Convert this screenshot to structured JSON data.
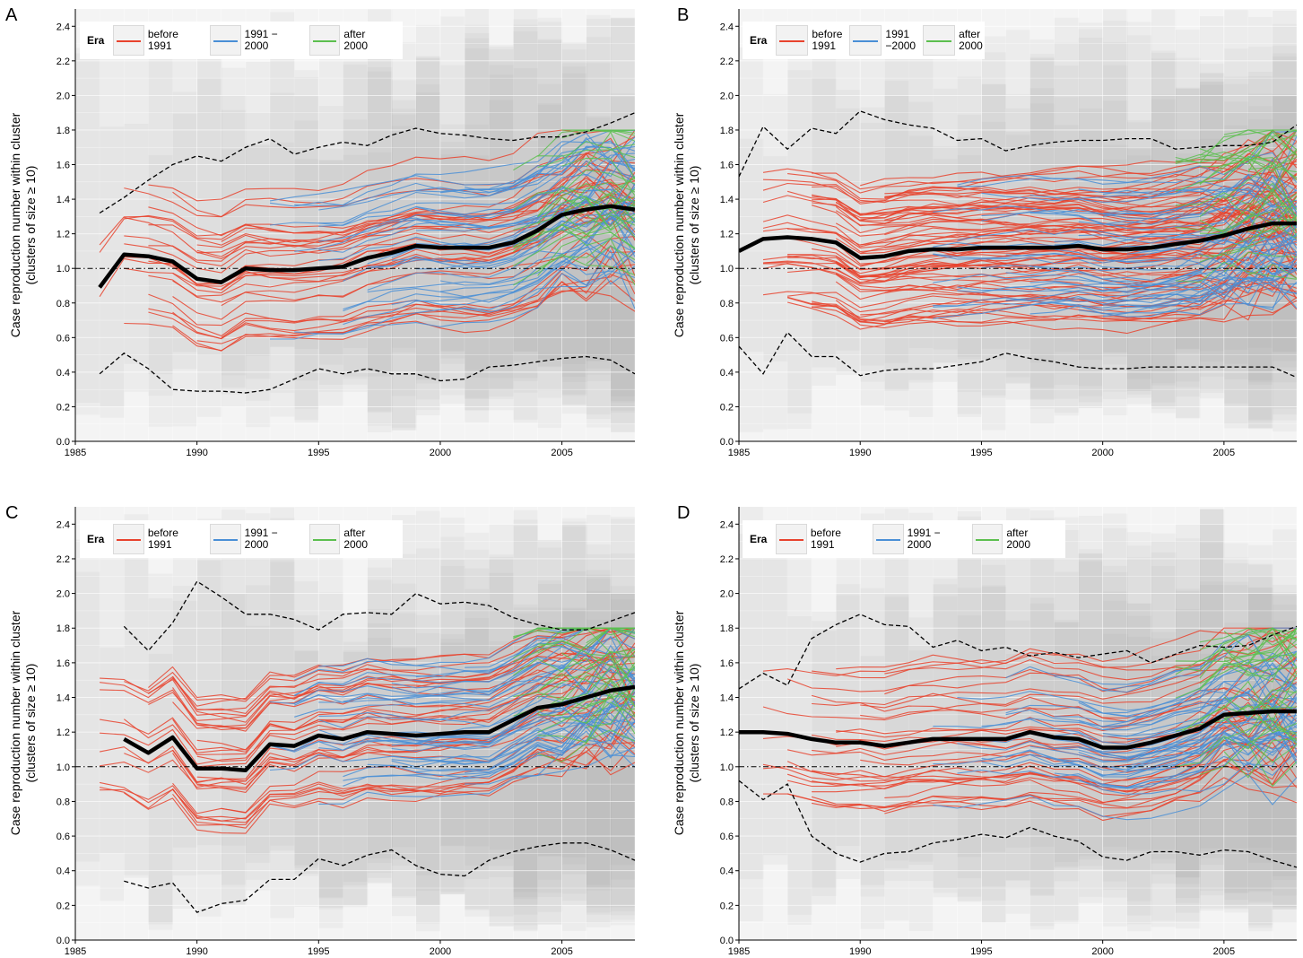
{
  "panels": [
    {
      "letter": "A",
      "ylabel_line1": "Case reproduction number within cluster",
      "ylabel_line2": "(clusters of size ≥ 10)",
      "legend": {
        "title": "Era",
        "entries": [
          "before 1991",
          "1991 − 2000",
          "after 2000"
        ]
      },
      "legend_wrapped": false
    },
    {
      "letter": "B",
      "ylabel_line1": "Case reproduction number within cluster",
      "ylabel_line2": "(clusters of size ≥ 10)",
      "legend": {
        "title": "Era",
        "entries": [
          "before\n1991",
          "1991\n−2000",
          "after\n2000"
        ]
      },
      "legend_wrapped": true
    },
    {
      "letter": "C",
      "ylabel_line1": "Case reproduction number within cluster",
      "ylabel_line2": "(clusters of size ≥ 10)",
      "legend": {
        "title": "Era",
        "entries": [
          "before 1991",
          "1991 − 2000",
          "after 2000"
        ]
      },
      "legend_wrapped": false
    },
    {
      "letter": "D",
      "ylabel_line1": "Case reproduction number within cluster",
      "ylabel_line2": "(clusters of size ≥ 10)",
      "legend": {
        "title": "Era",
        "entries": [
          "before 1991",
          "1991 − 2000",
          "after 2000"
        ]
      },
      "legend_wrapped": false
    }
  ],
  "colors": {
    "before_1991": "#e8432e",
    "1991_2000": "#4a8fd6",
    "after_2000": "#5cbf4f",
    "mean_line": "#000000",
    "quantile_line": "#000000",
    "reference_line": "#000000",
    "background_band": "#8a8a8a"
  },
  "chart_data": [
    {
      "panel": "A",
      "type": "line",
      "xlim": [
        1985,
        2008
      ],
      "ylim": [
        0,
        2.5
      ],
      "x_ticks": [
        1985,
        1990,
        1995,
        2000,
        2005
      ],
      "y_ticks": [
        0.0,
        0.2,
        0.4,
        0.6,
        0.8,
        1.0,
        1.2,
        1.4,
        1.6,
        1.8,
        2.0,
        2.2,
        2.4
      ],
      "reference_y": 1.0,
      "grid": true,
      "legend_position": "top-left",
      "series": [
        {
          "role": "mean",
          "x": [
            1986,
            1987,
            1988,
            1989,
            1990,
            1991,
            1992,
            1993,
            1994,
            1995,
            1996,
            1997,
            1998,
            1999,
            2000,
            2001,
            2002,
            2003,
            2004,
            2005,
            2006,
            2007,
            2008
          ],
          "y": [
            0.89,
            1.08,
            1.07,
            1.04,
            0.94,
            0.92,
            1.0,
            0.99,
            0.99,
            1.0,
            1.01,
            1.06,
            1.09,
            1.13,
            1.12,
            1.12,
            1.12,
            1.15,
            1.22,
            1.31,
            1.34,
            1.36,
            1.34
          ]
        },
        {
          "role": "upper",
          "x": [
            1986,
            1987,
            1988,
            1989,
            1990,
            1991,
            1992,
            1993,
            1994,
            1995,
            1996,
            1997,
            1998,
            1999,
            2000,
            2001,
            2002,
            2003,
            2004,
            2005,
            2006,
            2007,
            2008
          ],
          "y": [
            1.32,
            1.41,
            1.51,
            1.6,
            1.65,
            1.62,
            1.7,
            1.75,
            1.66,
            1.7,
            1.73,
            1.71,
            1.77,
            1.81,
            1.78,
            1.77,
            1.75,
            1.74,
            1.76,
            1.76,
            1.79,
            1.84,
            1.9
          ]
        },
        {
          "role": "lower",
          "x": [
            1986,
            1987,
            1988,
            1989,
            1990,
            1991,
            1992,
            1993,
            1994,
            1995,
            1996,
            1997,
            1998,
            1999,
            2000,
            2001,
            2002,
            2003,
            2004,
            2005,
            2006,
            2007,
            2008
          ],
          "y": [
            0.39,
            0.51,
            0.42,
            0.3,
            0.29,
            0.29,
            0.28,
            0.3,
            0.36,
            0.42,
            0.39,
            0.42,
            0.39,
            0.39,
            0.35,
            0.36,
            0.43,
            0.44,
            0.46,
            0.48,
            0.49,
            0.47,
            0.39
          ]
        }
      ]
    },
    {
      "panel": "B",
      "type": "line",
      "xlim": [
        1985,
        2008
      ],
      "ylim": [
        0,
        2.5
      ],
      "x_ticks": [
        1985,
        1990,
        1995,
        2000,
        2005
      ],
      "y_ticks": [
        0.0,
        0.2,
        0.4,
        0.6,
        0.8,
        1.0,
        1.2,
        1.4,
        1.6,
        1.8,
        2.0,
        2.2,
        2.4
      ],
      "reference_y": 1.0,
      "grid": true,
      "legend_position": "top-left",
      "series": [
        {
          "role": "mean",
          "x": [
            1985,
            1986,
            1987,
            1988,
            1989,
            1990,
            1991,
            1992,
            1993,
            1994,
            1995,
            1996,
            1997,
            1998,
            1999,
            2000,
            2001,
            2002,
            2003,
            2004,
            2005,
            2006,
            2007,
            2008
          ],
          "y": [
            1.1,
            1.17,
            1.18,
            1.17,
            1.15,
            1.06,
            1.07,
            1.1,
            1.11,
            1.11,
            1.12,
            1.12,
            1.12,
            1.12,
            1.13,
            1.11,
            1.11,
            1.12,
            1.14,
            1.16,
            1.19,
            1.23,
            1.26,
            1.26
          ]
        },
        {
          "role": "upper",
          "x": [
            1985,
            1986,
            1987,
            1988,
            1989,
            1990,
            1991,
            1992,
            1993,
            1994,
            1995,
            1996,
            1997,
            1998,
            1999,
            2000,
            2001,
            2002,
            2003,
            2004,
            2005,
            2006,
            2007,
            2008
          ],
          "y": [
            1.53,
            1.82,
            1.69,
            1.81,
            1.78,
            1.91,
            1.86,
            1.83,
            1.81,
            1.74,
            1.75,
            1.68,
            1.71,
            1.73,
            1.74,
            1.74,
            1.75,
            1.75,
            1.69,
            1.7,
            1.71,
            1.71,
            1.73,
            1.83
          ]
        },
        {
          "role": "lower",
          "x": [
            1985,
            1986,
            1987,
            1988,
            1989,
            1990,
            1991,
            1992,
            1993,
            1994,
            1995,
            1996,
            1997,
            1998,
            1999,
            2000,
            2001,
            2002,
            2003,
            2004,
            2005,
            2006,
            2007,
            2008
          ],
          "y": [
            0.55,
            0.39,
            0.63,
            0.49,
            0.49,
            0.38,
            0.41,
            0.42,
            0.42,
            0.44,
            0.46,
            0.51,
            0.48,
            0.46,
            0.43,
            0.42,
            0.42,
            0.43,
            0.43,
            0.43,
            0.43,
            0.43,
            0.43,
            0.37
          ]
        }
      ]
    },
    {
      "panel": "C",
      "type": "line",
      "xlim": [
        1985,
        2008
      ],
      "ylim": [
        0,
        2.5
      ],
      "x_ticks": [
        1985,
        1990,
        1995,
        2000,
        2005
      ],
      "y_ticks": [
        0.0,
        0.2,
        0.4,
        0.6,
        0.8,
        1.0,
        1.2,
        1.4,
        1.6,
        1.8,
        2.0,
        2.2,
        2.4
      ],
      "reference_y": 1.0,
      "grid": true,
      "legend_position": "top-left",
      "series": [
        {
          "role": "mean",
          "x": [
            1987,
            1988,
            1989,
            1990,
            1991,
            1992,
            1993,
            1994,
            1995,
            1996,
            1997,
            1998,
            1999,
            2000,
            2001,
            2002,
            2003,
            2004,
            2005,
            2006,
            2007,
            2008
          ],
          "y": [
            1.16,
            1.08,
            1.17,
            0.99,
            0.99,
            0.98,
            1.13,
            1.12,
            1.18,
            1.16,
            1.2,
            1.19,
            1.18,
            1.19,
            1.2,
            1.2,
            1.27,
            1.34,
            1.36,
            1.4,
            1.44,
            1.46
          ]
        },
        {
          "role": "upper",
          "x": [
            1987,
            1988,
            1989,
            1990,
            1991,
            1992,
            1993,
            1994,
            1995,
            1996,
            1997,
            1998,
            1999,
            2000,
            2001,
            2002,
            2003,
            2004,
            2005,
            2006,
            2007,
            2008
          ],
          "y": [
            1.81,
            1.67,
            1.83,
            2.07,
            1.98,
            1.88,
            1.88,
            1.85,
            1.79,
            1.88,
            1.89,
            1.88,
            2.0,
            1.94,
            1.95,
            1.93,
            1.86,
            1.82,
            1.79,
            1.79,
            1.84,
            1.89
          ]
        },
        {
          "role": "lower",
          "x": [
            1987,
            1988,
            1989,
            1990,
            1991,
            1992,
            1993,
            1994,
            1995,
            1996,
            1997,
            1998,
            1999,
            2000,
            2001,
            2002,
            2003,
            2004,
            2005,
            2006,
            2007,
            2008
          ],
          "y": [
            0.34,
            0.3,
            0.33,
            0.16,
            0.21,
            0.23,
            0.35,
            0.35,
            0.47,
            0.43,
            0.49,
            0.52,
            0.43,
            0.38,
            0.37,
            0.46,
            0.51,
            0.54,
            0.56,
            0.56,
            0.52,
            0.46
          ]
        }
      ]
    },
    {
      "panel": "D",
      "type": "line",
      "xlim": [
        1985,
        2008
      ],
      "ylim": [
        0,
        2.5
      ],
      "x_ticks": [
        1985,
        1990,
        1995,
        2000,
        2005
      ],
      "y_ticks": [
        0.0,
        0.2,
        0.4,
        0.6,
        0.8,
        1.0,
        1.2,
        1.4,
        1.6,
        1.8,
        2.0,
        2.2,
        2.4
      ],
      "reference_y": 1.0,
      "grid": true,
      "legend_position": "top-left",
      "series": [
        {
          "role": "mean",
          "x": [
            1985,
            1986,
            1987,
            1988,
            1989,
            1990,
            1991,
            1992,
            1993,
            1994,
            1995,
            1996,
            1997,
            1998,
            1999,
            2000,
            2001,
            2002,
            2003,
            2004,
            2005,
            2006,
            2007,
            2008
          ],
          "y": [
            1.2,
            1.2,
            1.19,
            1.16,
            1.14,
            1.14,
            1.12,
            1.14,
            1.16,
            1.16,
            1.16,
            1.16,
            1.2,
            1.17,
            1.16,
            1.11,
            1.11,
            1.14,
            1.18,
            1.22,
            1.3,
            1.31,
            1.32,
            1.32
          ]
        },
        {
          "role": "upper",
          "x": [
            1985,
            1986,
            1987,
            1988,
            1989,
            1990,
            1991,
            1992,
            1993,
            1994,
            1995,
            1996,
            1997,
            1998,
            1999,
            2000,
            2001,
            2002,
            2003,
            2004,
            2005,
            2006,
            2007,
            2008
          ],
          "y": [
            1.45,
            1.54,
            1.47,
            1.74,
            1.82,
            1.88,
            1.82,
            1.81,
            1.69,
            1.73,
            1.67,
            1.69,
            1.64,
            1.66,
            1.63,
            1.65,
            1.67,
            1.6,
            1.65,
            1.7,
            1.69,
            1.7,
            1.76,
            1.81
          ]
        },
        {
          "role": "lower",
          "x": [
            1985,
            1986,
            1987,
            1988,
            1989,
            1990,
            1991,
            1992,
            1993,
            1994,
            1995,
            1996,
            1997,
            1998,
            1999,
            2000,
            2001,
            2002,
            2003,
            2004,
            2005,
            2006,
            2007,
            2008
          ],
          "y": [
            0.92,
            0.81,
            0.9,
            0.6,
            0.5,
            0.45,
            0.5,
            0.51,
            0.56,
            0.58,
            0.61,
            0.59,
            0.65,
            0.6,
            0.57,
            0.48,
            0.46,
            0.51,
            0.51,
            0.49,
            0.52,
            0.51,
            0.46,
            0.42
          ]
        }
      ]
    }
  ]
}
